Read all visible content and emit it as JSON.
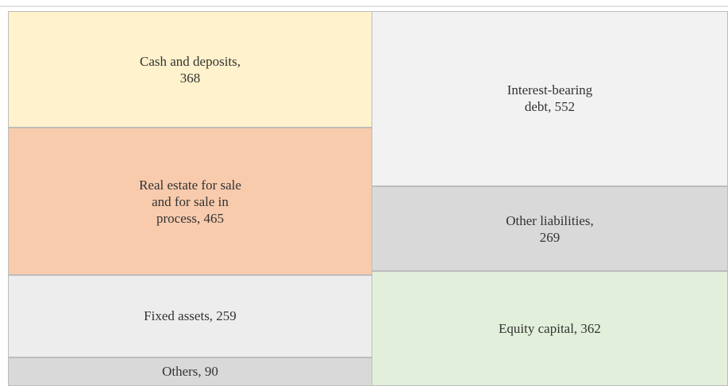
{
  "chart_data": {
    "type": "balance-sheet",
    "columns": [
      {
        "segments": [
          {
            "value": 368,
            "value_label": "Cash and deposits,\n368",
            "color": "#fff2cc"
          },
          {
            "value": 465,
            "value_label": "Real estate for sale\nand for sale in\nprocess, 465",
            "color": "#f8cbad"
          },
          {
            "value": 259,
            "value_label": "Fixed assets, 259",
            "color": "#ededed"
          },
          {
            "value": 90,
            "value_label": "Others, 90",
            "color": "#d9d9d9"
          }
        ]
      },
      {
        "segments": [
          {
            "value": 552,
            "value_label": "Interest-bearing\ndebt, 552",
            "color": "#f2f2f2"
          },
          {
            "value": 269,
            "value_label": "Other liabilities,\n269",
            "color": "#d9d9d9"
          },
          {
            "value": 362,
            "value_label": "Equity capital, 362",
            "color": "#e2efda"
          }
        ]
      }
    ]
  }
}
